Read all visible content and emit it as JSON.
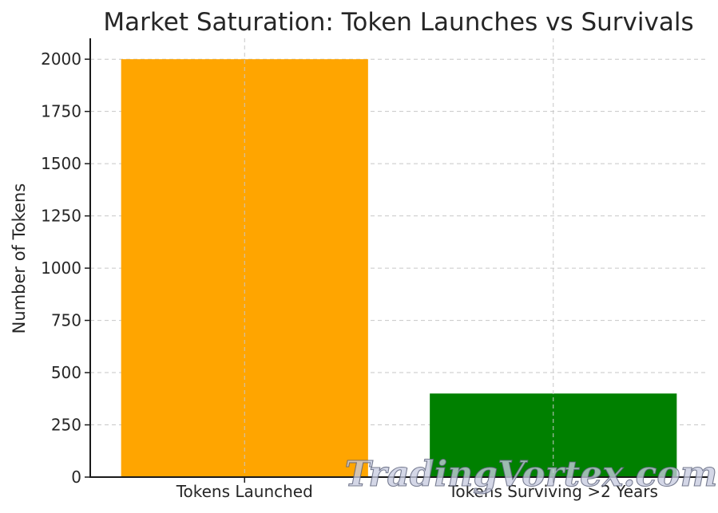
{
  "chart_data": {
    "type": "bar",
    "title": "Market Saturation: Token Launches vs Survivals",
    "xlabel": "",
    "ylabel": "Number of Tokens",
    "categories": [
      "Tokens Launched",
      "Tokens Surviving >2 Years"
    ],
    "values": [
      2000,
      400
    ],
    "colors": [
      "#FFA500",
      "#008000"
    ],
    "ylim": [
      0,
      2100
    ],
    "yticks": [
      0,
      250,
      500,
      750,
      1000,
      1250,
      1500,
      1750,
      2000
    ],
    "grid": true,
    "legend": false
  },
  "watermark": {
    "text": "TradingVortex.com"
  }
}
